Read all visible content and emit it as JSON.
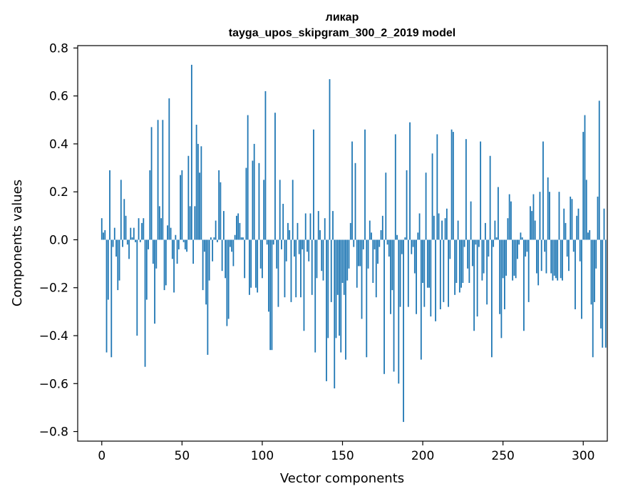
{
  "chart_data": {
    "type": "bar",
    "title": "ликар",
    "subtitle": "tayga_upos_skipgram_300_2_2019 model",
    "xlabel": "Vector components",
    "ylabel": "Components values",
    "xlim": [
      -15,
      315
    ],
    "ylim": [
      -0.84,
      0.81
    ],
    "xticks": [
      0,
      50,
      100,
      150,
      200,
      250,
      300
    ],
    "xtick_labels": [
      "0",
      "50",
      "100",
      "150",
      "200",
      "250",
      "300"
    ],
    "yticks": [
      -0.8,
      -0.6,
      -0.4,
      -0.2,
      0.0,
      0.2,
      0.4,
      0.6,
      0.8
    ],
    "ytick_labels": [
      "−0.8",
      "−0.6",
      "−0.4",
      "−0.2",
      "0.0",
      "0.2",
      "0.4",
      "0.6",
      "0.8"
    ],
    "bar_color": "#1f77b4",
    "grid": false,
    "values": [
      0.09,
      0.03,
      0.04,
      -0.47,
      -0.25,
      0.29,
      -0.49,
      -0.03,
      0.05,
      -0.07,
      -0.21,
      -0.17,
      0.25,
      -0.03,
      0.17,
      0.1,
      -0.02,
      -0.08,
      0.05,
      0.01,
      0.05,
      -0.01,
      -0.4,
      0.09,
      -0.01,
      0.07,
      0.09,
      -0.53,
      -0.25,
      -0.04,
      0.29,
      0.47,
      -0.1,
      -0.35,
      -0.12,
      0.5,
      0.14,
      0.09,
      0.5,
      -0.21,
      -0.19,
      0.06,
      0.59,
      0.05,
      -0.08,
      -0.22,
      0.02,
      -0.1,
      -0.04,
      0.27,
      0.29,
      -0.01,
      -0.04,
      -0.05,
      0.35,
      0.14,
      0.73,
      -0.1,
      0.14,
      0.48,
      0.4,
      0.28,
      0.39,
      -0.21,
      -0.05,
      -0.27,
      -0.48,
      -0.17,
      0.01,
      -0.09,
      0.01,
      0.08,
      -0.01,
      0.29,
      0.24,
      -0.13,
      0.12,
      -0.16,
      -0.36,
      -0.33,
      -0.03,
      -0.05,
      -0.11,
      0.02,
      0.1,
      0.11,
      0.07,
      0.01,
      0.01,
      -0.16,
      0.3,
      0.52,
      -0.23,
      -0.2,
      0.33,
      0.4,
      -0.2,
      -0.22,
      0.32,
      -0.12,
      -0.16,
      0.25,
      0.62,
      -0.02,
      -0.3,
      -0.46,
      -0.46,
      -0.02,
      0.53,
      -0.12,
      -0.28,
      0.25,
      -0.04,
      0.15,
      -0.24,
      -0.09,
      0.07,
      0.04,
      -0.26,
      0.25,
      -0.07,
      -0.24,
      0.07,
      -0.06,
      -0.24,
      -0.04,
      -0.38,
      0.11,
      -0.05,
      -0.09,
      0.11,
      -0.23,
      0.46,
      -0.47,
      -0.16,
      0.12,
      0.04,
      -0.13,
      -0.17,
      0.09,
      -0.59,
      -0.41,
      0.67,
      -0.26,
      0.12,
      -0.62,
      -0.41,
      -0.23,
      -0.4,
      -0.47,
      -0.18,
      -0.23,
      -0.5,
      -0.17,
      -0.12,
      0.07,
      0.41,
      -0.03,
      0.32,
      -0.2,
      -0.11,
      -0.11,
      -0.33,
      -0.04,
      0.46,
      -0.49,
      -0.12,
      0.08,
      0.03,
      -0.18,
      -0.04,
      -0.24,
      -0.1,
      -0.03,
      0.04,
      0.1,
      -0.56,
      0.28,
      -0.02,
      -0.07,
      -0.31,
      -0.21,
      -0.55,
      0.44,
      0.02,
      -0.6,
      -0.28,
      -0.06,
      -0.76,
      0.01,
      0.29,
      -0.28,
      0.49,
      -0.06,
      -0.03,
      -0.14,
      -0.31,
      0.03,
      0.11,
      -0.5,
      -0.18,
      -0.28,
      0.28,
      -0.2,
      -0.2,
      -0.32,
      0.36,
      0.1,
      -0.34,
      0.44,
      0.11,
      -0.29,
      0.08,
      -0.26,
      0.09,
      0.13,
      -0.28,
      -0.08,
      0.46,
      0.45,
      -0.23,
      -0.18,
      0.08,
      -0.22,
      -0.2,
      -0.18,
      -0.03,
      0.42,
      -0.12,
      -0.18,
      0.16,
      -0.11,
      -0.38,
      -0.02,
      -0.32,
      -0.03,
      0.41,
      -0.17,
      -0.14,
      0.07,
      -0.27,
      -0.07,
      0.35,
      -0.49,
      -0.03,
      0.08,
      0.01,
      0.22,
      -0.31,
      -0.41,
      -0.16,
      -0.29,
      -0.15,
      0.09,
      0.19,
      0.16,
      -0.17,
      -0.15,
      -0.16,
      -0.08,
      -0.02,
      0.03,
      0.01,
      -0.38,
      -0.07,
      -0.05,
      -0.26,
      0.14,
      0.12,
      0.19,
      0.08,
      -0.14,
      -0.19,
      0.2,
      -0.13,
      0.41,
      -0.05,
      -0.14,
      0.26,
      0.2,
      -0.14,
      -0.17,
      -0.15,
      -0.16,
      -0.17,
      0.2,
      -0.16,
      -0.17,
      0.13,
      0.07,
      -0.07,
      -0.13,
      0.18,
      0.17,
      -0.05,
      -0.29,
      0.1,
      0.13,
      -0.09,
      -0.33,
      0.45,
      0.52,
      0.25,
      0.03,
      0.04,
      -0.27,
      -0.49,
      -0.26,
      -0.12,
      0.18,
      0.58,
      -0.37,
      -0.45,
      0.13,
      -0.45
    ]
  }
}
